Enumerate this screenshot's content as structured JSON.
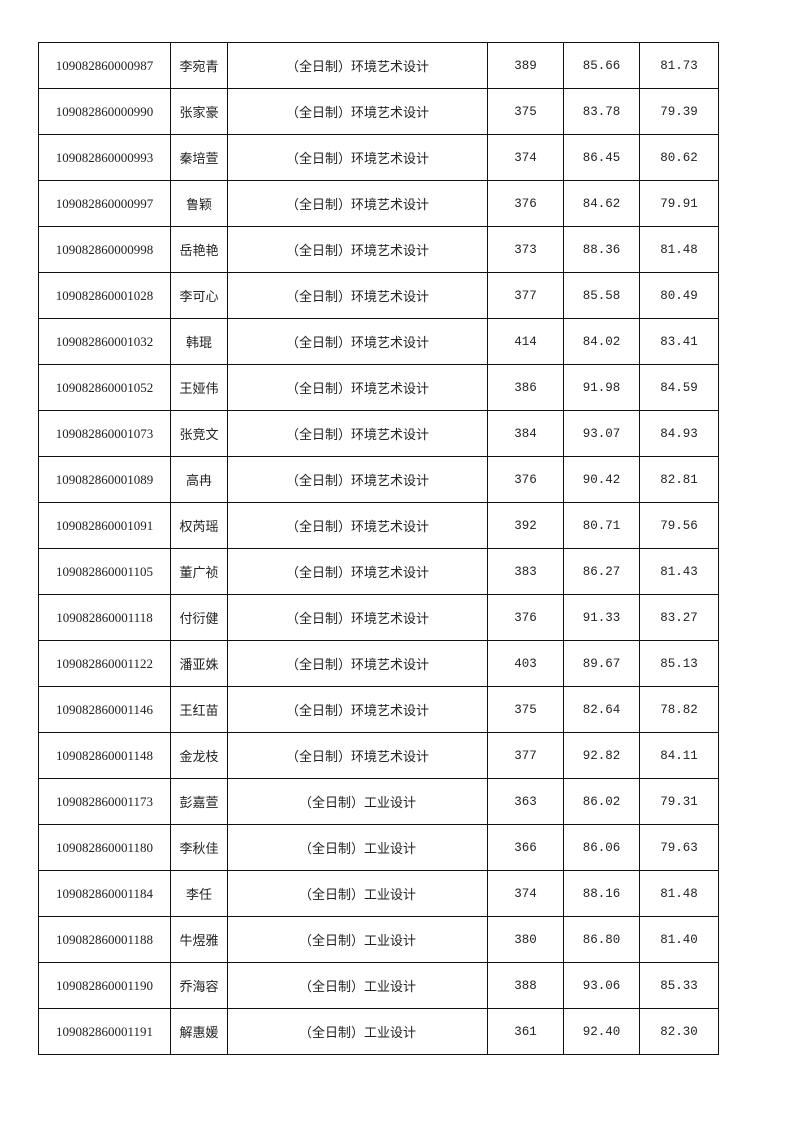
{
  "table": {
    "rows": [
      {
        "id": "109082860000987",
        "name": "李宛青",
        "major": "（全日制）环境艺术设计",
        "score1": "389",
        "score2": "85.66",
        "total": "81.73"
      },
      {
        "id": "109082860000990",
        "name": "张家豪",
        "major": "（全日制）环境艺术设计",
        "score1": "375",
        "score2": "83.78",
        "total": "79.39"
      },
      {
        "id": "109082860000993",
        "name": "秦培萱",
        "major": "（全日制）环境艺术设计",
        "score1": "374",
        "score2": "86.45",
        "total": "80.62"
      },
      {
        "id": "109082860000997",
        "name": "鲁颖",
        "major": "（全日制）环境艺术设计",
        "score1": "376",
        "score2": "84.62",
        "total": "79.91"
      },
      {
        "id": "109082860000998",
        "name": "岳艳艳",
        "major": "（全日制）环境艺术设计",
        "score1": "373",
        "score2": "88.36",
        "total": "81.48"
      },
      {
        "id": "109082860001028",
        "name": "李可心",
        "major": "（全日制）环境艺术设计",
        "score1": "377",
        "score2": "85.58",
        "total": "80.49"
      },
      {
        "id": "109082860001032",
        "name": "韩琨",
        "major": "（全日制）环境艺术设计",
        "score1": "414",
        "score2": "84.02",
        "total": "83.41"
      },
      {
        "id": "109082860001052",
        "name": "王娅伟",
        "major": "（全日制）环境艺术设计",
        "score1": "386",
        "score2": "91.98",
        "total": "84.59"
      },
      {
        "id": "109082860001073",
        "name": "张竞文",
        "major": "（全日制）环境艺术设计",
        "score1": "384",
        "score2": "93.07",
        "total": "84.93"
      },
      {
        "id": "109082860001089",
        "name": "高冉",
        "major": "（全日制）环境艺术设计",
        "score1": "376",
        "score2": "90.42",
        "total": "82.81"
      },
      {
        "id": "109082860001091",
        "name": "权芮瑶",
        "major": "（全日制）环境艺术设计",
        "score1": "392",
        "score2": "80.71",
        "total": "79.56"
      },
      {
        "id": "109082860001105",
        "name": "董广祯",
        "major": "（全日制）环境艺术设计",
        "score1": "383",
        "score2": "86.27",
        "total": "81.43"
      },
      {
        "id": "109082860001118",
        "name": "付衍健",
        "major": "（全日制）环境艺术设计",
        "score1": "376",
        "score2": "91.33",
        "total": "83.27"
      },
      {
        "id": "109082860001122",
        "name": "潘亚姝",
        "major": "（全日制）环境艺术设计",
        "score1": "403",
        "score2": "89.67",
        "total": "85.13"
      },
      {
        "id": "109082860001146",
        "name": "王红苗",
        "major": "（全日制）环境艺术设计",
        "score1": "375",
        "score2": "82.64",
        "total": "78.82"
      },
      {
        "id": "109082860001148",
        "name": "金龙枝",
        "major": "（全日制）环境艺术设计",
        "score1": "377",
        "score2": "92.82",
        "total": "84.11"
      },
      {
        "id": "109082860001173",
        "name": "彭嘉萱",
        "major": "（全日制）工业设计",
        "score1": "363",
        "score2": "86.02",
        "total": "79.31"
      },
      {
        "id": "109082860001180",
        "name": "李秋佳",
        "major": "（全日制）工业设计",
        "score1": "366",
        "score2": "86.06",
        "total": "79.63"
      },
      {
        "id": "109082860001184",
        "name": "李任",
        "major": "（全日制）工业设计",
        "score1": "374",
        "score2": "88.16",
        "total": "81.48"
      },
      {
        "id": "109082860001188",
        "name": "牛煜雅",
        "major": "（全日制）工业设计",
        "score1": "380",
        "score2": "86.80",
        "total": "81.40"
      },
      {
        "id": "109082860001190",
        "name": "乔海容",
        "major": "（全日制）工业设计",
        "score1": "388",
        "score2": "93.06",
        "total": "85.33"
      },
      {
        "id": "109082860001191",
        "name": "解惠媛",
        "major": "（全日制）工业设计",
        "score1": "361",
        "score2": "92.40",
        "total": "82.30"
      }
    ]
  }
}
